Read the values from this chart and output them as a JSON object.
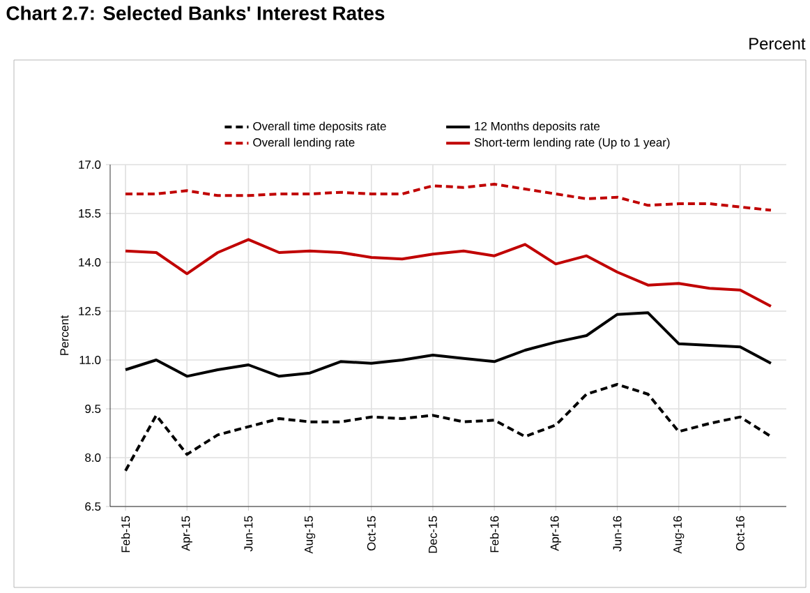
{
  "chart_data": {
    "type": "line",
    "title": "Chart 2.7: Selected Banks' Interest Rates",
    "ylabel": "Percent",
    "annotations": [
      "Percent"
    ],
    "categories": [
      "Feb-15",
      null,
      "Apr-15",
      null,
      "Jun-15",
      null,
      "Aug-15",
      null,
      "Oct-15",
      null,
      "Dec-15",
      null,
      "Feb-16",
      null,
      "Apr-16",
      null,
      "Jun-16",
      null,
      "Aug-16",
      null,
      "Oct-16",
      null
    ],
    "series": [
      {
        "name": "Overall time deposits rate",
        "color": "#000000",
        "line_style": "dashed",
        "values": [
          7.6,
          9.3,
          8.1,
          8.7,
          8.95,
          9.2,
          9.1,
          9.1,
          9.25,
          9.2,
          9.3,
          9.1,
          9.15,
          8.65,
          9.0,
          9.95,
          10.25,
          9.95,
          8.8,
          9.05,
          9.25,
          8.65
        ]
      },
      {
        "name": "12 Months deposits rate",
        "color": "#000000",
        "line_style": "solid",
        "values": [
          10.7,
          11.0,
          10.5,
          10.7,
          10.85,
          10.5,
          10.6,
          10.95,
          10.9,
          11.0,
          11.15,
          11.05,
          10.95,
          11.3,
          11.55,
          11.75,
          12.4,
          12.45,
          11.5,
          11.45,
          11.4,
          10.9
        ]
      },
      {
        "name": "Overall lending rate",
        "color": "#c00000",
        "line_style": "dashed",
        "values": [
          16.1,
          16.1,
          16.2,
          16.05,
          16.05,
          16.1,
          16.1,
          16.15,
          16.1,
          16.1,
          16.35,
          16.3,
          16.4,
          16.25,
          16.1,
          15.95,
          16.0,
          15.75,
          15.8,
          15.8,
          15.7,
          15.6
        ]
      },
      {
        "name": "Short-term lending  rate (Up to 1 year)",
        "color": "#c00000",
        "line_style": "solid",
        "values": [
          14.35,
          14.3,
          13.65,
          14.3,
          14.7,
          14.3,
          14.35,
          14.3,
          14.15,
          14.1,
          14.25,
          14.35,
          14.2,
          14.55,
          13.95,
          14.2,
          13.7,
          13.3,
          13.35,
          13.2,
          13.15,
          12.65
        ]
      }
    ],
    "ylim": [
      6.5,
      17.0
    ],
    "yticks": [
      {
        "value": 6.5,
        "label": "6.5"
      },
      {
        "value": 8.0,
        "label": "8.0"
      },
      {
        "value": 9.5,
        "label": "9.5"
      },
      {
        "value": 11.0,
        "label": "11.0"
      },
      {
        "value": 12.5,
        "label": "12.5"
      },
      {
        "value": 14.0,
        "label": "14.0"
      },
      {
        "value": 15.5,
        "label": "15.5"
      },
      {
        "value": 17.0,
        "label": "17.0"
      }
    ],
    "grid": true,
    "legend": "top",
    "marker": "none"
  }
}
